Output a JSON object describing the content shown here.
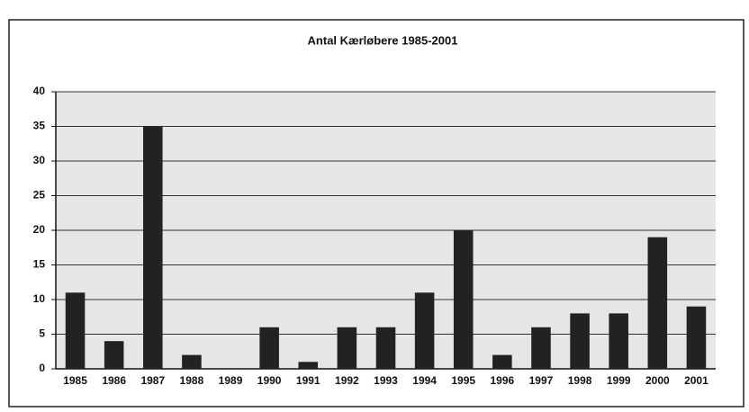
{
  "chart_data": {
    "type": "bar",
    "title": "Antal Kærløbere 1985-2001",
    "categories": [
      "1985",
      "1986",
      "1987",
      "1988",
      "1989",
      "1990",
      "1991",
      "1992",
      "1993",
      "1994",
      "1995",
      "1996",
      "1997",
      "1998",
      "1999",
      "2000",
      "2001"
    ],
    "values": [
      11,
      4,
      35,
      2,
      0,
      6,
      1,
      6,
      6,
      11,
      20,
      2,
      6,
      8,
      8,
      19,
      9
    ],
    "color": "#222222",
    "ylim": [
      0,
      40
    ],
    "yticks": [
      0,
      5,
      10,
      15,
      20,
      25,
      30,
      35,
      40
    ],
    "grid": true
  }
}
